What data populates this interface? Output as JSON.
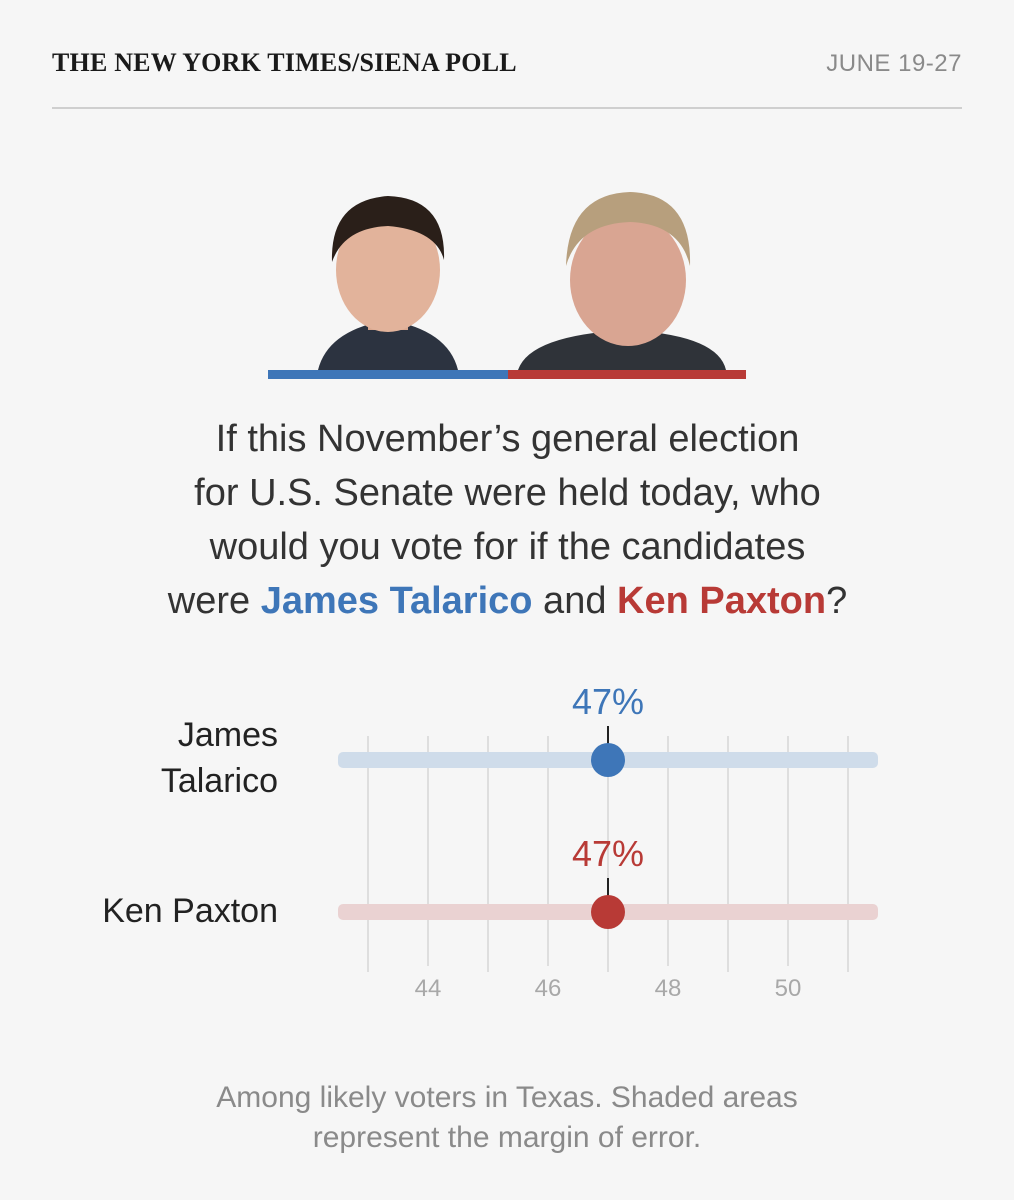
{
  "header": {
    "masthead": "THE NEW YORK TIMES/SIENA POLL",
    "dates": "JUNE 19-27"
  },
  "question": {
    "line1": "If this November’s general election",
    "line2": "for U.S. Senate were held today, who",
    "line3": "would you vote for if the candidates",
    "line4_pre": "were ",
    "candidate_a": "James Talarico",
    "line4_mid": " and ",
    "candidate_b": "Ken Paxton",
    "line4_post": "?"
  },
  "labels": {
    "talarico_line1": "James",
    "talarico_line2": "Talarico",
    "paxton": "Ken Paxton"
  },
  "colors": {
    "blue": "#3e76b8",
    "red": "#b83a36",
    "blue_band": "#cfdcea",
    "red_band": "#ead2d2"
  },
  "chart_data": {
    "type": "scatter",
    "x_range": [
      42.5,
      51.5
    ],
    "x_ticks": [
      44,
      46,
      48,
      50
    ],
    "x_tick_labels": [
      "44",
      "46",
      "48",
      "50"
    ],
    "grid_lines_at": [
      43,
      44,
      45,
      46,
      47,
      48,
      49,
      50,
      51
    ],
    "series": [
      {
        "name": "James Talarico",
        "value": 47,
        "value_label": "47%",
        "error_range": [
          42.5,
          51.5
        ],
        "color": "#3e76b8"
      },
      {
        "name": "Ken Paxton",
        "value": 47,
        "value_label": "47%",
        "error_range": [
          42.5,
          51.5
        ],
        "color": "#b83a36"
      }
    ]
  },
  "note": "Among likely voters in Texas. Shaded areas represent the margin of error."
}
